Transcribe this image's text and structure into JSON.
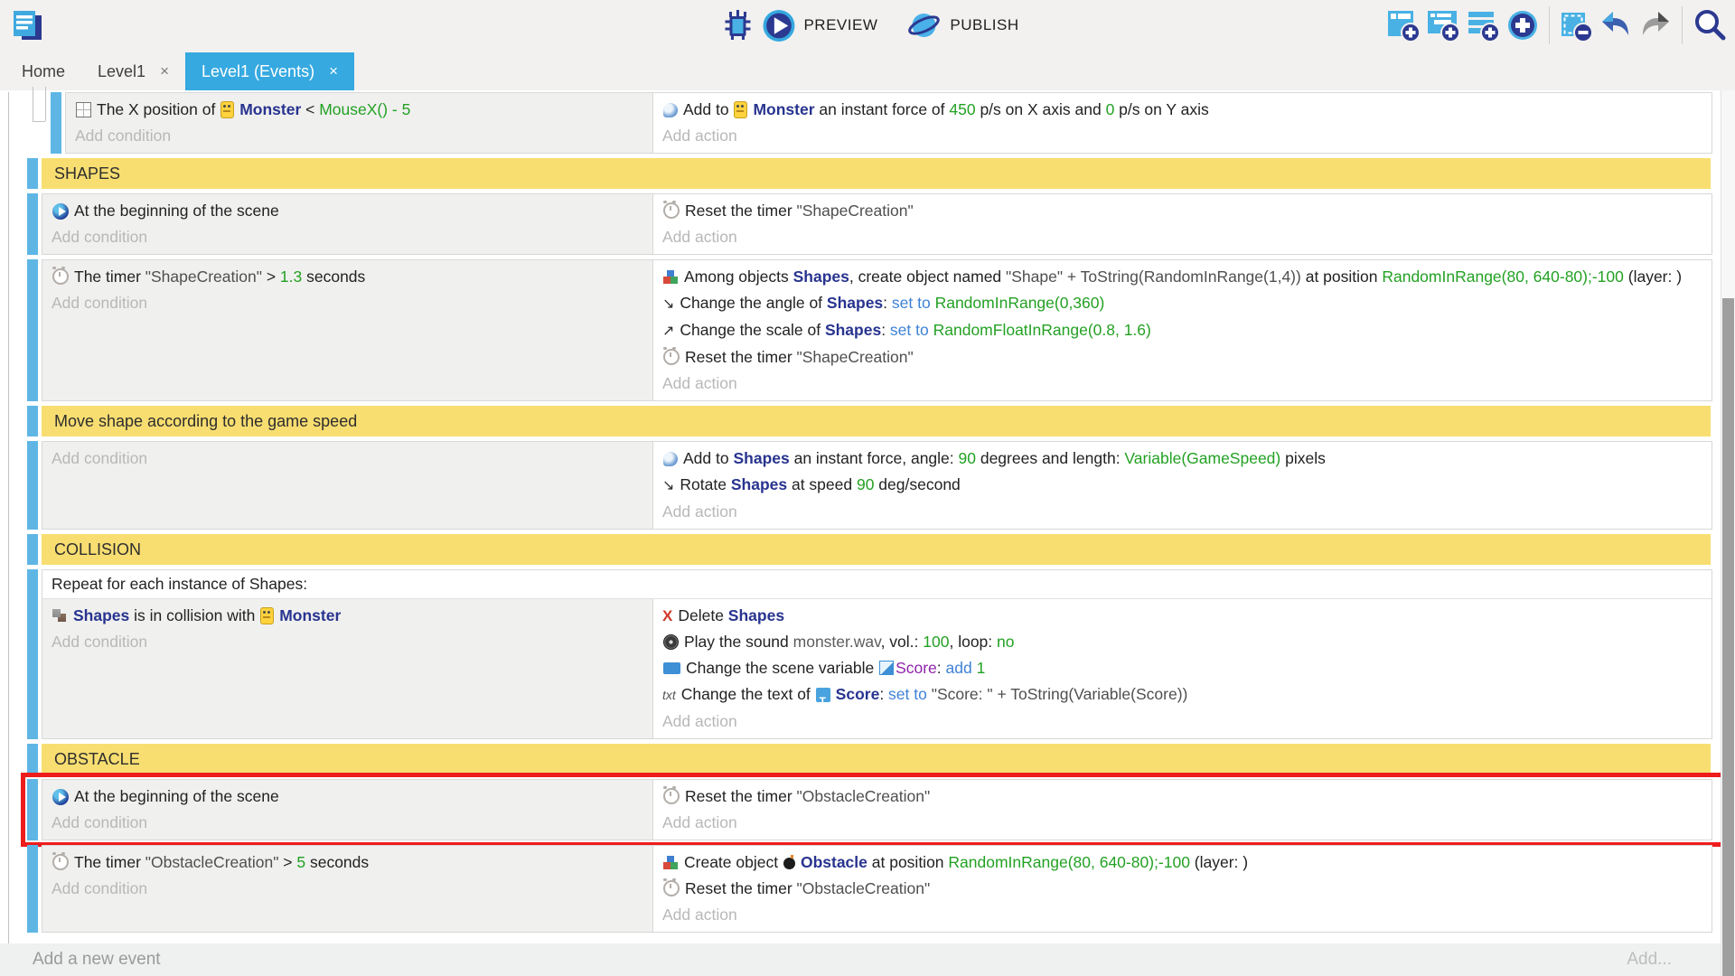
{
  "toolbar": {
    "preview_label": "PREVIEW",
    "publish_label": "PUBLISH",
    "right_icons": [
      "add-event-icon",
      "add-subevent-icon",
      "add-comment-icon",
      "add-circle-icon",
      "separator",
      "delete-selection-icon",
      "undo-icon",
      "redo-icon",
      "separator",
      "search-icon"
    ]
  },
  "tabs": [
    {
      "label": "Home",
      "closable": false,
      "active": false
    },
    {
      "label": "Level1",
      "closable": true,
      "active": false
    },
    {
      "label": "Level1 (Events)",
      "closable": true,
      "active": true
    }
  ],
  "ui": {
    "close_glyph": "×"
  },
  "icon_glyphs": {
    "angle": "↘",
    "scale": "↗",
    "delete": "X",
    "txt": "txt"
  },
  "labels": {
    "add_condition": "Add condition",
    "add_action": "Add action"
  },
  "footer": {
    "add_event_label": "Add a new event",
    "add_more_label": "Add..."
  },
  "colors": {
    "accent_blue": "#36a9e0",
    "toolbar_navy": "#2b3990",
    "toolbar_light_blue": "#49b1e4",
    "group_yellow": "#f8de71",
    "event_bar_blue": "#5fb6e5",
    "value_green": "#23a123",
    "object_blue": "#28348f",
    "keyword_blue": "#3f82d6",
    "variable_purple": "#8e24aa",
    "highlight_red": "#ee1c1c"
  },
  "sheet": {
    "rows": [
      {
        "type": "event",
        "indent": "sub",
        "conditions": [
          [
            {
              "i": "position"
            },
            {
              "t": "The X position of "
            },
            {
              "i": "monster"
            },
            {
              "t": "Monster",
              "c": "obj"
            },
            {
              "t": "  <  "
            },
            {
              "t": "MouseX() - 5",
              "c": "val"
            }
          ]
        ],
        "actions": [
          [
            {
              "i": "force"
            },
            {
              "t": "Add to "
            },
            {
              "i": "monster"
            },
            {
              "t": "Monster",
              "c": "obj"
            },
            {
              "t": " an instant force of "
            },
            {
              "t": "450",
              "c": "val"
            },
            {
              "t": " p/s on X axis and "
            },
            {
              "t": "0",
              "c": "val"
            },
            {
              "t": " p/s on Y axis"
            }
          ]
        ]
      },
      {
        "type": "group",
        "label": "SHAPES"
      },
      {
        "type": "event",
        "conditions": [
          [
            {
              "i": "play"
            },
            {
              "t": "At the beginning of the scene"
            }
          ]
        ],
        "actions": [
          [
            {
              "i": "timer"
            },
            {
              "t": "Reset the timer "
            },
            {
              "t": "\"ShapeCreation\"",
              "c": "str"
            }
          ]
        ]
      },
      {
        "type": "event",
        "conditions": [
          [
            {
              "i": "timer"
            },
            {
              "t": "The timer "
            },
            {
              "t": "\"ShapeCreation\"",
              "c": "str"
            },
            {
              "t": "  >  "
            },
            {
              "t": "1.3",
              "c": "val"
            },
            {
              "t": " seconds"
            }
          ]
        ],
        "actions": [
          [
            {
              "i": "create"
            },
            {
              "t": "Among objects "
            },
            {
              "t": "Shapes",
              "c": "obj"
            },
            {
              "t": ", create object named "
            },
            {
              "t": "\"Shape\" + ToString(RandomInRange(1,4))",
              "c": "str"
            },
            {
              "t": " at position "
            },
            {
              "t": "RandomInRange(80, 640-80);-100",
              "c": "val"
            },
            {
              "t": " (layer: )"
            }
          ],
          [
            {
              "i": "angle"
            },
            {
              "t": "Change the angle of "
            },
            {
              "t": "Shapes",
              "c": "obj"
            },
            {
              "t": ": "
            },
            {
              "t": "set to",
              "c": "kw"
            },
            {
              "t": " "
            },
            {
              "t": "RandomInRange(0,360)",
              "c": "val"
            }
          ],
          [
            {
              "i": "scale"
            },
            {
              "t": "Change the scale of "
            },
            {
              "t": "Shapes",
              "c": "obj"
            },
            {
              "t": ": "
            },
            {
              "t": "set to",
              "c": "kw"
            },
            {
              "t": " "
            },
            {
              "t": "RandomFloatInRange(0.8, 1.6)",
              "c": "val"
            }
          ],
          [
            {
              "i": "timer"
            },
            {
              "t": "Reset the timer "
            },
            {
              "t": "\"ShapeCreation\"",
              "c": "str"
            }
          ]
        ]
      },
      {
        "type": "group",
        "label": "Move shape according to the game speed"
      },
      {
        "type": "event",
        "conditions": [],
        "actions": [
          [
            {
              "i": "force"
            },
            {
              "t": "Add to "
            },
            {
              "t": "Shapes",
              "c": "obj"
            },
            {
              "t": " an instant force, angle: "
            },
            {
              "t": "90",
              "c": "val"
            },
            {
              "t": " degrees and length: "
            },
            {
              "t": "Variable(GameSpeed)",
              "c": "val"
            },
            {
              "t": " pixels"
            }
          ],
          [
            {
              "i": "angle"
            },
            {
              "t": "Rotate "
            },
            {
              "t": "Shapes",
              "c": "obj"
            },
            {
              "t": " at speed "
            },
            {
              "t": "90",
              "c": "val"
            },
            {
              "t": " deg/second"
            }
          ]
        ]
      },
      {
        "type": "group",
        "label": "COLLISION"
      },
      {
        "type": "foreach",
        "header": "Repeat for each instance of Shapes:",
        "conditions": [
          [
            {
              "i": "collision"
            },
            {
              "t": "Shapes",
              "c": "obj"
            },
            {
              "t": " is in collision with "
            },
            {
              "i": "monster"
            },
            {
              "t": "Monster",
              "c": "obj"
            }
          ]
        ],
        "actions": [
          [
            {
              "i": "delete"
            },
            {
              "t": "Delete "
            },
            {
              "t": "Shapes",
              "c": "obj"
            }
          ],
          [
            {
              "i": "sound"
            },
            {
              "t": "Play the sound "
            },
            {
              "t": "monster.wav",
              "c": "file"
            },
            {
              "t": ", vol.: "
            },
            {
              "t": "100",
              "c": "val"
            },
            {
              "t": ", loop: "
            },
            {
              "t": "no",
              "c": "val"
            }
          ],
          [
            {
              "i": "variable"
            },
            {
              "t": "Change the scene variable "
            },
            {
              "i": "scenevar"
            },
            {
              "t": "Score",
              "c": "var"
            },
            {
              "t": ": "
            },
            {
              "t": "add",
              "c": "kw"
            },
            {
              "t": " "
            },
            {
              "t": "1",
              "c": "val"
            }
          ],
          [
            {
              "i": "txt"
            },
            {
              "t": "Change the text of "
            },
            {
              "i": "textobj"
            },
            {
              "t": "Score",
              "c": "obj"
            },
            {
              "t": ": "
            },
            {
              "t": "set to",
              "c": "kw"
            },
            {
              "t": " "
            },
            {
              "t": "\"Score: \" + ToString(Variable(Score))",
              "c": "str"
            }
          ]
        ]
      },
      {
        "type": "group",
        "label": "OBSTACLE"
      },
      {
        "type": "event",
        "highlight": true,
        "conditions": [
          [
            {
              "i": "play"
            },
            {
              "t": "At the beginning of the scene"
            }
          ]
        ],
        "actions": [
          [
            {
              "i": "timer"
            },
            {
              "t": "Reset the timer "
            },
            {
              "t": "\"ObstacleCreation\"",
              "c": "str"
            }
          ]
        ]
      },
      {
        "type": "event",
        "conditions": [
          [
            {
              "i": "timer"
            },
            {
              "t": "The timer "
            },
            {
              "t": "\"ObstacleCreation\"",
              "c": "str"
            },
            {
              "t": "  >  "
            },
            {
              "t": "5",
              "c": "val"
            },
            {
              "t": " seconds"
            }
          ]
        ],
        "actions": [
          [
            {
              "i": "create"
            },
            {
              "t": "Create object "
            },
            {
              "i": "bomb"
            },
            {
              "t": "Obstacle",
              "c": "obj"
            },
            {
              "t": " at position "
            },
            {
              "t": "RandomInRange(80, 640-80);-100",
              "c": "val"
            },
            {
              "t": " (layer: )"
            }
          ],
          [
            {
              "i": "timer"
            },
            {
              "t": "Reset the timer "
            },
            {
              "t": "\"ObstacleCreation\"",
              "c": "str"
            }
          ]
        ]
      }
    ]
  }
}
